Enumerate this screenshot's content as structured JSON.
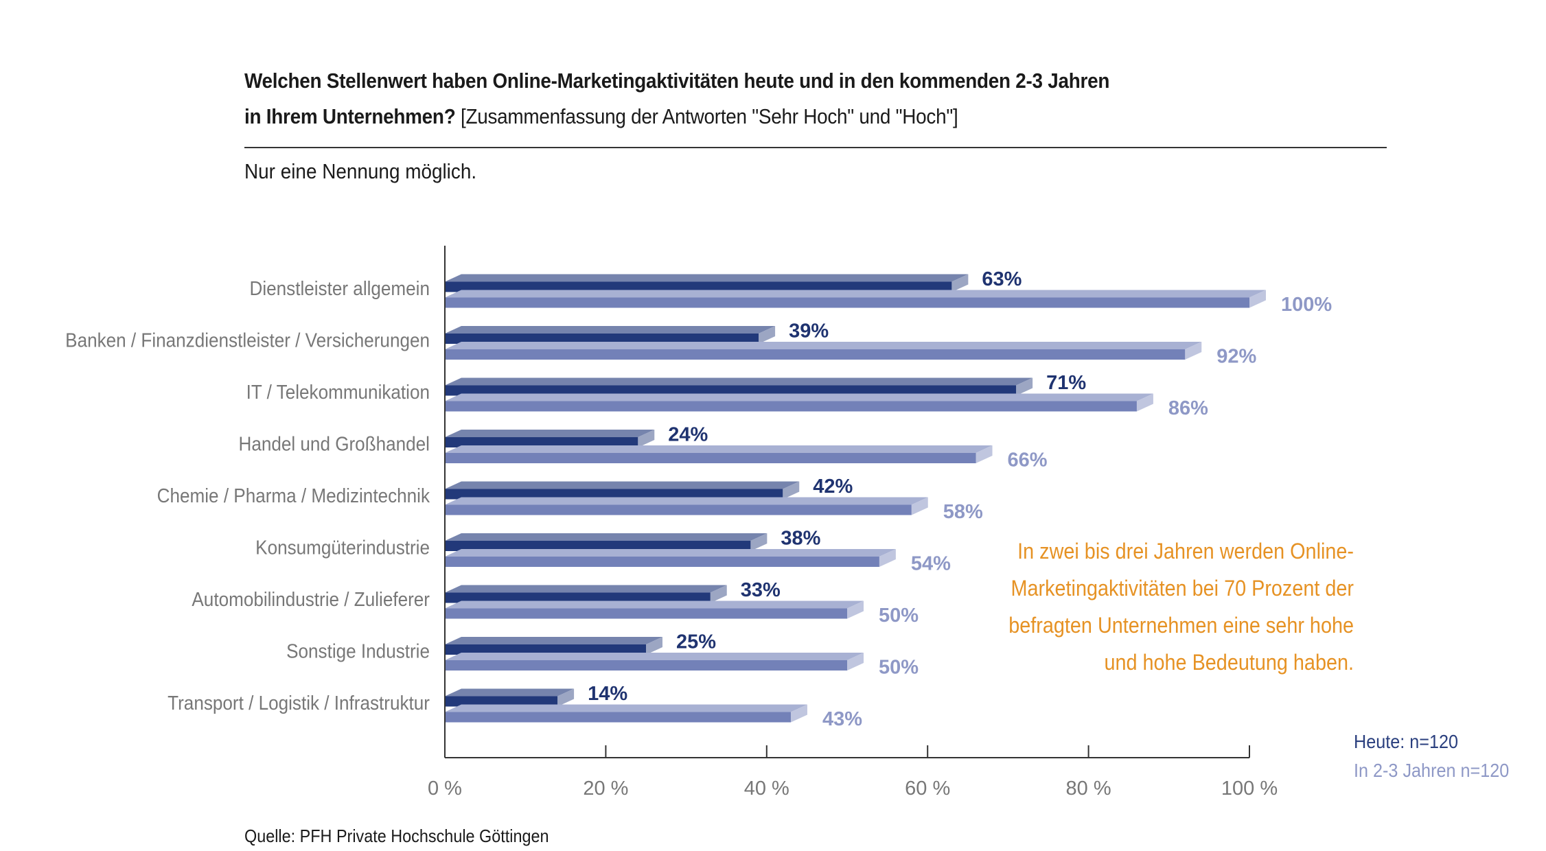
{
  "title": {
    "line1": "Welchen Stellenwert haben Online-Marketingaktivitäten heute und in den kommenden 2-3 Jahren",
    "line2_bold": "in Ihrem Unternehmen?",
    "line2_note": "[Zusammenfassung der Antworten \"Sehr Hoch\" und \"Hoch\"]"
  },
  "subtitle": "Nur eine Nennung möglich.",
  "annotation": "In zwei bis drei Jahren werden Online-Marketingaktivitäten bei 70 Prozent der befragten Unternehmen eine sehr hohe und hohe Bedeutung haben.",
  "legend": {
    "now": "Heute: n=120",
    "future": "In 2-3 Jahren n=120"
  },
  "source": "Quelle: PFH Private Hochschule Göttingen",
  "colors": {
    "now_bar": "#22397A",
    "now_label": "#1F3370",
    "future_bar": "#7381B8",
    "future_label": "#8E98C6",
    "annotation": "#E69224",
    "category_label": "#777777",
    "axis": "#333333"
  },
  "chart_data": {
    "type": "bar",
    "orientation": "horizontal",
    "categories": [
      "Dienstleister allgemein",
      "Banken / Finanzdienstleister / Versicherungen",
      "IT / Telekommunikation",
      "Handel und Großhandel",
      "Chemie / Pharma / Medizintechnik",
      "Konsumgüterindustrie",
      "Automobilindustrie / Zulieferer",
      "Sonstige Industrie",
      "Transport / Logistik / Infrastruktur"
    ],
    "series": [
      {
        "name": "Heute: n=120",
        "values": [
          63,
          39,
          71,
          24,
          42,
          38,
          33,
          25,
          14
        ],
        "labels": [
          "63%",
          "39%",
          "71%",
          "24%",
          "42%",
          "38%",
          "33%",
          "25%",
          "14%"
        ]
      },
      {
        "name": "In 2-3 Jahren n=120",
        "values": [
          100,
          92,
          86,
          66,
          58,
          54,
          50,
          50,
          43
        ],
        "labels": [
          "100%",
          "92%",
          "86%",
          "66%",
          "58%",
          "54%",
          "50%",
          "50%",
          "43%"
        ]
      }
    ],
    "xlim": [
      0,
      100
    ],
    "xticks": [
      0,
      20,
      40,
      60,
      80,
      100
    ],
    "xtick_labels": [
      "0 %",
      "20 %",
      "40 %",
      "60 %",
      "80 %",
      "100 %"
    ],
    "grid": false,
    "legend_position": "bottom-right"
  }
}
